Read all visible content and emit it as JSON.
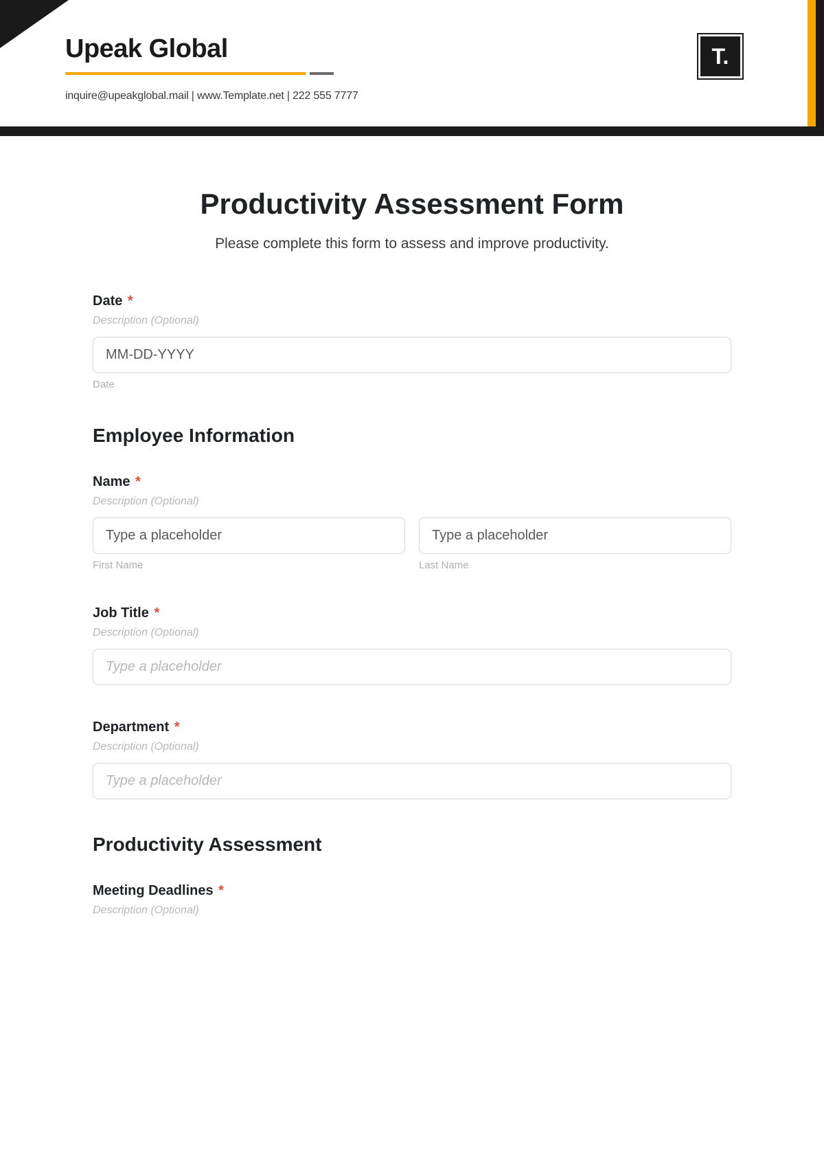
{
  "header": {
    "company_name": "Upeak Global",
    "contact_email": "inquire@upeakglobal.mail",
    "contact_website": "www.Template.net",
    "contact_phone": "222 555 7777",
    "contact_separator": "  |  ",
    "logo_text": "T.",
    "accent_color": "#f7a600",
    "bar_color": "#1a1a1a"
  },
  "form": {
    "title": "Productivity Assessment Form",
    "subtitle": "Please complete this form to assess and improve productivity.",
    "description_hint": "Description (Optional)",
    "required_mark": "*",
    "date_field": {
      "label": "Date",
      "placeholder": "MM-DD-YYYY",
      "sublabel": "Date"
    },
    "section_employee": {
      "heading": "Employee Information",
      "name_field": {
        "label": "Name",
        "first_placeholder": "Type a placeholder",
        "first_sublabel": "First Name",
        "last_placeholder": "Type a placeholder",
        "last_sublabel": "Last Name"
      },
      "job_title_field": {
        "label": "Job Title",
        "placeholder": "Type a placeholder"
      },
      "department_field": {
        "label": "Department",
        "placeholder": "Type a placeholder"
      }
    },
    "section_assessment": {
      "heading": "Productivity Assessment",
      "meeting_deadlines_field": {
        "label": "Meeting Deadlines"
      }
    }
  }
}
